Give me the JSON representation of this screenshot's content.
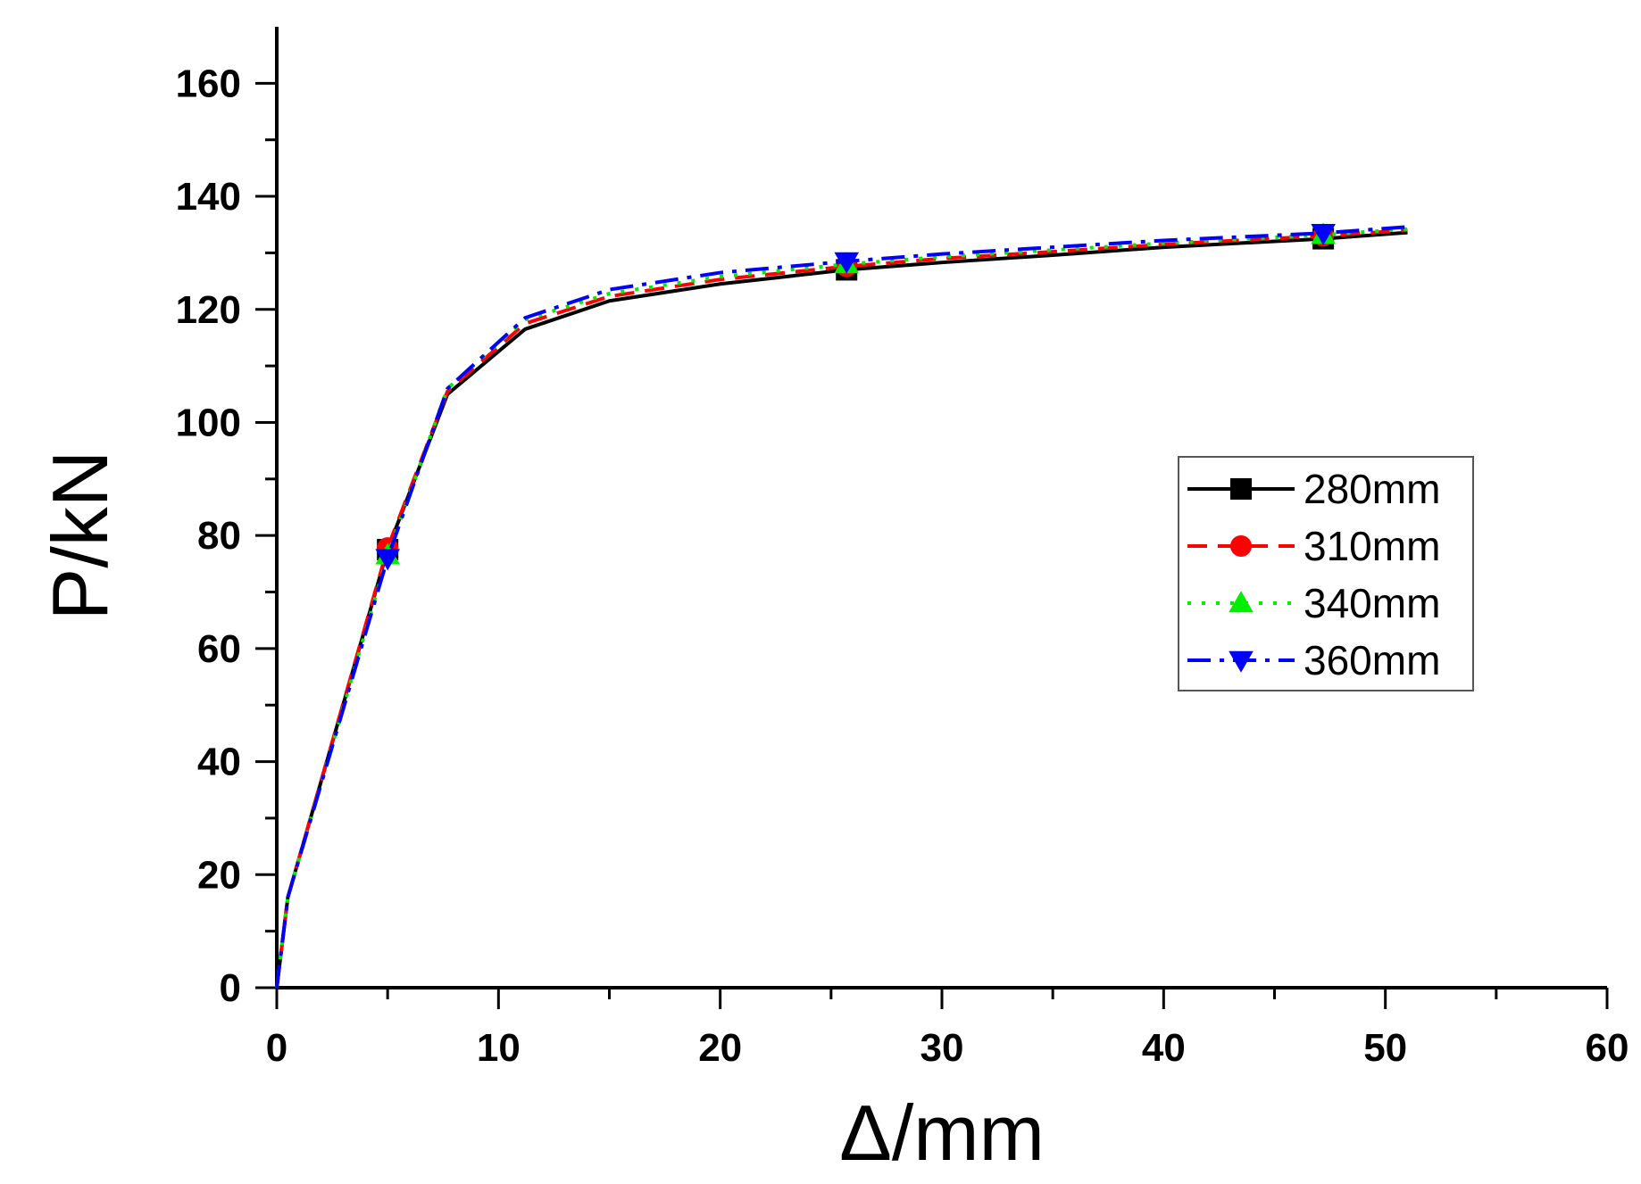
{
  "chart_data": {
    "type": "line",
    "xlabel": "Δ/mm",
    "ylabel": "P/kN",
    "xlim": [
      0,
      60
    ],
    "ylim": [
      0,
      170
    ],
    "xticks": [
      0,
      10,
      20,
      30,
      40,
      50,
      60
    ],
    "yticks": [
      0,
      20,
      40,
      60,
      80,
      100,
      120,
      140,
      160
    ],
    "grid": false,
    "legend_position": "right",
    "series": [
      {
        "name": "280mm",
        "color": "#000000",
        "line_style": "solid",
        "marker": "square",
        "x": [
          0,
          0.5,
          5,
          7.7,
          11.2,
          15,
          20,
          25.7,
          30,
          35,
          40,
          47.2,
          51
        ],
        "y": [
          0,
          16,
          77.5,
          105,
          116.5,
          121.5,
          124.5,
          127,
          128.3,
          129.6,
          131,
          132.5,
          133.6
        ],
        "markers_at_x": [
          5,
          25.7,
          47.2
        ]
      },
      {
        "name": "310mm",
        "color": "#ff0000",
        "line_style": "dashed",
        "marker": "circle",
        "x": [
          0,
          0.5,
          5,
          7.7,
          11.2,
          15,
          20,
          25.7,
          30,
          35,
          40,
          47.2,
          51
        ],
        "y": [
          0,
          16,
          77.8,
          105.5,
          117.5,
          122.3,
          125.3,
          127.6,
          129,
          130.2,
          131.5,
          133,
          134
        ],
        "markers_at_x": [
          5,
          25.7,
          47.2
        ]
      },
      {
        "name": "340mm",
        "color": "#00ee00",
        "line_style": "dotted",
        "marker": "triangle-up",
        "x": [
          0,
          0.5,
          5,
          7.7,
          11.2,
          15,
          20,
          25.7,
          30,
          35,
          40,
          47.2,
          51
        ],
        "y": [
          0,
          16,
          76.5,
          106,
          118.2,
          122.8,
          125.8,
          128,
          129.3,
          130.5,
          131.7,
          133.2,
          134.2
        ],
        "markers_at_x": [
          5,
          25.7,
          47.2
        ]
      },
      {
        "name": "360mm",
        "color": "#0000ff",
        "line_style": "dash-dot",
        "marker": "triangle-down",
        "x": [
          0,
          0.5,
          5,
          7.7,
          11.2,
          15,
          20,
          25.7,
          30,
          35,
          40,
          47.2,
          51
        ],
        "y": [
          0,
          16,
          76,
          106,
          118.5,
          123.5,
          126.5,
          128.5,
          129.8,
          131,
          132.2,
          133.5,
          134.6
        ],
        "markers_at_x": [
          5,
          25.7,
          47.2
        ]
      }
    ]
  }
}
